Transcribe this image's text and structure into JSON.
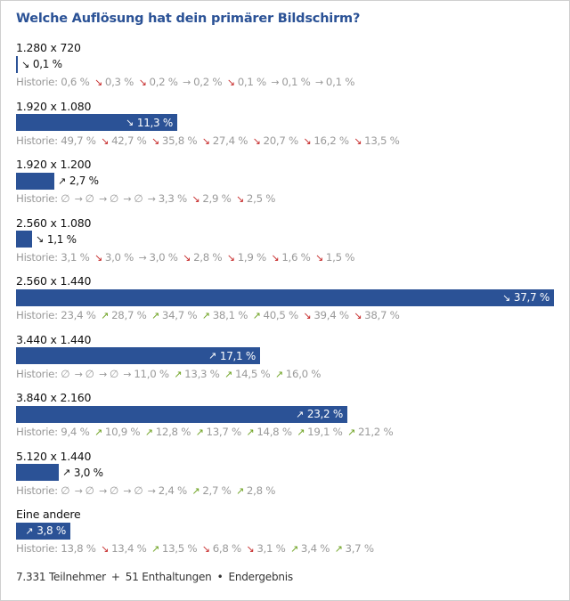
{
  "title": "Welche Auflösung hat dein primärer Bildschirm?",
  "history_label": "Historie:",
  "colors": {
    "bar": "#2b5296",
    "down": "#c62828",
    "up": "#6fa323",
    "flat": "#9a9a9a"
  },
  "max_percent": 37.7,
  "options": [
    {
      "label": "1.280 x 720",
      "percent": 0.1,
      "percent_text": "0,1 %",
      "trend": "down",
      "history": [
        {
          "text": "0,6 %",
          "arrow": "down"
        },
        {
          "text": "0,3 %",
          "arrow": "down"
        },
        {
          "text": "0,2 %",
          "arrow": "flat"
        },
        {
          "text": "0,2 %",
          "arrow": "down"
        },
        {
          "text": "0,1 %",
          "arrow": "flat"
        },
        {
          "text": "0,1 %",
          "arrow": "flat"
        },
        {
          "text": "0,1 %",
          "arrow": null
        }
      ]
    },
    {
      "label": "1.920 x 1.080",
      "percent": 11.3,
      "percent_text": "11,3 %",
      "trend": "down",
      "history": [
        {
          "text": "49,7 %",
          "arrow": "down"
        },
        {
          "text": "42,7 %",
          "arrow": "down"
        },
        {
          "text": "35,8 %",
          "arrow": "down"
        },
        {
          "text": "27,4 %",
          "arrow": "down"
        },
        {
          "text": "20,7 %",
          "arrow": "down"
        },
        {
          "text": "16,2 %",
          "arrow": "down"
        },
        {
          "text": "13,5 %",
          "arrow": null
        }
      ]
    },
    {
      "label": "1.920 x 1.200",
      "percent": 2.7,
      "percent_text": "2,7 %",
      "trend": "up",
      "history": [
        {
          "text": "∅",
          "arrow": "flat"
        },
        {
          "text": "∅",
          "arrow": "flat"
        },
        {
          "text": "∅",
          "arrow": "flat"
        },
        {
          "text": "∅",
          "arrow": "flat"
        },
        {
          "text": "3,3 %",
          "arrow": "down"
        },
        {
          "text": "2,9 %",
          "arrow": "down"
        },
        {
          "text": "2,5 %",
          "arrow": null
        }
      ]
    },
    {
      "label": "2.560 x 1.080",
      "percent": 1.1,
      "percent_text": "1,1 %",
      "trend": "down",
      "history": [
        {
          "text": "3,1 %",
          "arrow": "down"
        },
        {
          "text": "3,0 %",
          "arrow": "flat"
        },
        {
          "text": "3,0 %",
          "arrow": "down"
        },
        {
          "text": "2,8 %",
          "arrow": "down"
        },
        {
          "text": "1,9 %",
          "arrow": "down"
        },
        {
          "text": "1,6 %",
          "arrow": "down"
        },
        {
          "text": "1,5 %",
          "arrow": null
        }
      ]
    },
    {
      "label": "2.560 x 1.440",
      "percent": 37.7,
      "percent_text": "37,7 %",
      "trend": "down",
      "history": [
        {
          "text": "23,4 %",
          "arrow": "up"
        },
        {
          "text": "28,7 %",
          "arrow": "up"
        },
        {
          "text": "34,7 %",
          "arrow": "up"
        },
        {
          "text": "38,1 %",
          "arrow": "up"
        },
        {
          "text": "40,5 %",
          "arrow": "down"
        },
        {
          "text": "39,4 %",
          "arrow": "down"
        },
        {
          "text": "38,7 %",
          "arrow": null
        }
      ]
    },
    {
      "label": "3.440 x 1.440",
      "percent": 17.1,
      "percent_text": "17,1 %",
      "trend": "up",
      "history": [
        {
          "text": "∅",
          "arrow": "flat"
        },
        {
          "text": "∅",
          "arrow": "flat"
        },
        {
          "text": "∅",
          "arrow": "flat"
        },
        {
          "text": "11,0 %",
          "arrow": "up"
        },
        {
          "text": "13,3 %",
          "arrow": "up"
        },
        {
          "text": "14,5 %",
          "arrow": "up"
        },
        {
          "text": "16,0 %",
          "arrow": null
        }
      ]
    },
    {
      "label": "3.840 x 2.160",
      "percent": 23.2,
      "percent_text": "23,2 %",
      "trend": "up",
      "history": [
        {
          "text": "9,4 %",
          "arrow": "up"
        },
        {
          "text": "10,9 %",
          "arrow": "up"
        },
        {
          "text": "12,8 %",
          "arrow": "up"
        },
        {
          "text": "13,7 %",
          "arrow": "up"
        },
        {
          "text": "14,8 %",
          "arrow": "up"
        },
        {
          "text": "19,1 %",
          "arrow": "up"
        },
        {
          "text": "21,2 %",
          "arrow": null
        }
      ]
    },
    {
      "label": "5.120 x 1.440",
      "percent": 3.0,
      "percent_text": "3,0 %",
      "trend": "up",
      "history": [
        {
          "text": "∅",
          "arrow": "flat"
        },
        {
          "text": "∅",
          "arrow": "flat"
        },
        {
          "text": "∅",
          "arrow": "flat"
        },
        {
          "text": "∅",
          "arrow": "flat"
        },
        {
          "text": "2,4 %",
          "arrow": "up"
        },
        {
          "text": "2,7 %",
          "arrow": "up"
        },
        {
          "text": "2,8 %",
          "arrow": null
        }
      ]
    },
    {
      "label": "Eine andere",
      "percent": 3.8,
      "percent_text": "3,8 %",
      "trend": "up",
      "history": [
        {
          "text": "13,8 %",
          "arrow": "down"
        },
        {
          "text": "13,4 %",
          "arrow": "up"
        },
        {
          "text": "13,5 %",
          "arrow": "down"
        },
        {
          "text": "6,8 %",
          "arrow": "down"
        },
        {
          "text": "3,1 %",
          "arrow": "up"
        },
        {
          "text": "3,4 %",
          "arrow": "up"
        },
        {
          "text": "3,7 %",
          "arrow": null
        }
      ]
    }
  ],
  "footer": {
    "participants": "7.331 Teilnehmer",
    "plus": "+",
    "abstentions": "51 Enthaltungen",
    "dot": "•",
    "status": "Endergebnis"
  }
}
